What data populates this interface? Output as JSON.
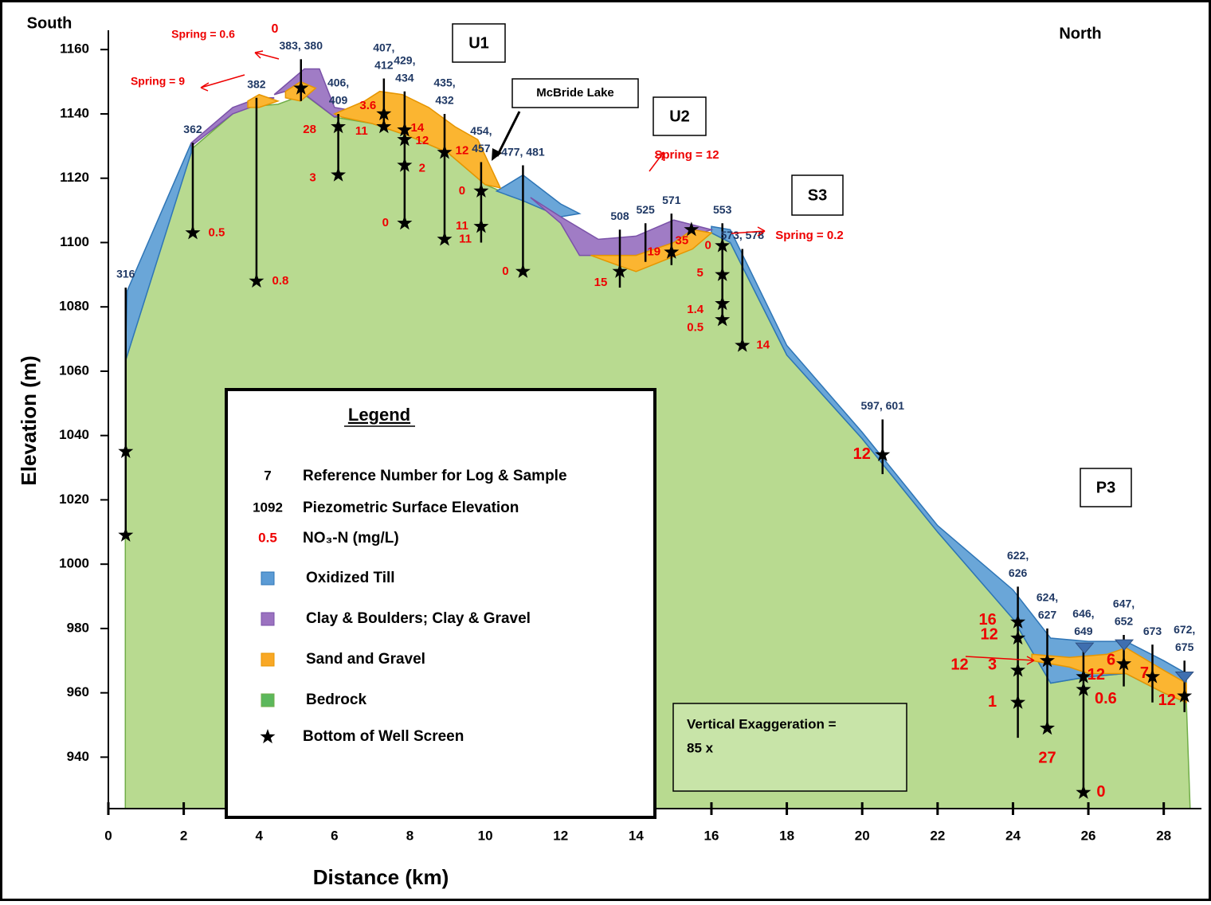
{
  "chart_data": {
    "type": "cross-section",
    "x_label": "Distance (km)",
    "y_label": "Elevation (m)",
    "xlim": [
      0,
      29
    ],
    "ylim": [
      924,
      1166
    ],
    "xticks": [
      0,
      2,
      4,
      6,
      8,
      10,
      12,
      14,
      16,
      18,
      20,
      22,
      24,
      26,
      28
    ],
    "yticks": [
      940,
      960,
      980,
      1000,
      1020,
      1040,
      1060,
      1080,
      1100,
      1120,
      1140,
      1160
    ],
    "corner_labels": [
      "South",
      "North"
    ],
    "section_labels": [
      "U1",
      "U2",
      "S3",
      "P3"
    ],
    "lake_label": "McBride Lake",
    "exaggeration_note": [
      "Vertical Exaggeration =",
      "85 x"
    ],
    "annotations": [
      "0",
      "Spring = 0.6",
      "Spring = 9",
      "Spring = 12",
      "Spring = 0.2"
    ],
    "layers": [
      {
        "name": "Oxidized Till",
        "color": "#6aa6d8",
        "polygons": [
          {
            "x": [
              0.45,
              0.5,
              2.2,
              2.2
            ],
            "y": [
              1063,
              1085,
              1131,
              1128
            ]
          },
          {
            "x": [
              10.3,
              11,
              12,
              12.5,
              12,
              11,
              10.3
            ],
            "y": [
              1116,
              1121,
              1112,
              1109,
              1108,
              1113,
              1116
            ]
          },
          {
            "x": [
              16,
              16.5,
              18,
              20,
              22,
              24,
              25,
              26,
              27,
              28,
              28.6,
              28.6,
              28,
              27,
              26,
              25,
              24,
              22,
              20,
              18,
              16.5,
              16
            ],
            "y": [
              1105,
              1104,
              1068,
              1041,
              1012,
              992,
              977,
              976,
              976,
              970,
              966,
              957,
              960,
              966,
              965,
              963,
              983,
              1010,
              1039,
              1065,
              1100,
              1103
            ]
          }
        ]
      },
      {
        "name": "Clay & Boulders; Clay & Gravel",
        "color": "#a07cc5",
        "polygons": [
          {
            "x": [
              2.2,
              3.3,
              4,
              4.4,
              4,
              3.3,
              2.2
            ],
            "y": [
              1131,
              1142,
              1145,
              1145,
              1143,
              1140,
              1130
            ]
          },
          {
            "x": [
              4.4,
              5.2,
              5.6,
              6,
              6.5,
              6,
              5,
              4.4
            ],
            "y": [
              1146,
              1154,
              1154,
              1142,
              1141,
              1139,
              1148,
              1146
            ]
          },
          {
            "x": [
              11.2,
              12,
              13,
              14,
              15,
              16,
              15.5,
              14,
              12.5,
              12,
              11.2
            ],
            "y": [
              1114,
              1108,
              1101,
              1102,
              1107,
              1104,
              1102,
              1096,
              1096,
              1106,
              1114
            ]
          }
        ]
      },
      {
        "name": "Sand and Gravel",
        "color": "#fbb531",
        "polygons": [
          {
            "x": [
              3.7,
              4,
              4.5,
              4,
              3.7
            ],
            "y": [
              1144,
              1146,
              1144,
              1142,
              1142
            ]
          },
          {
            "x": [
              4.7,
              5.1,
              5.5,
              5.1,
              4.7
            ],
            "y": [
              1147,
              1150,
              1148,
              1144,
              1145
            ]
          },
          {
            "x": [
              6,
              6.8,
              7.2,
              7.8,
              8.5,
              9.2,
              9.8,
              10.4,
              10,
              9,
              8,
              7,
              6.2
            ],
            "y": [
              1140,
              1144,
              1147,
              1146,
              1142,
              1136,
              1132,
              1117,
              1118,
              1128,
              1133,
              1137,
              1139
            ]
          },
          {
            "x": [
              12.8,
              14,
              15,
              15.5,
              16,
              15.5,
              14,
              13.5
            ],
            "y": [
              1096,
              1096,
              1100,
              1104,
              1103,
              1098,
              1091,
              1093
            ]
          },
          {
            "x": [
              24.5,
              25.5,
              26.5,
              27,
              28,
              28.6,
              28.6,
              28,
              27,
              26,
              25.5,
              24.5
            ],
            "y": [
              972,
              971,
              972,
              974,
              967,
              963,
              957,
              960,
              966,
              966,
              968,
              970
            ]
          }
        ]
      },
      {
        "name": "Bedrock",
        "color": "#b8da90",
        "polygons": [
          {
            "x": [
              0.45,
              0.45,
              2.2,
              3.5,
              4.5,
              5.2,
              6,
              7,
              8,
              9,
              10,
              10.4,
              11,
              12,
              13,
              14,
              15,
              16,
              16.5,
              18,
              20,
              22,
              24,
              25,
              26,
              27,
              28,
              28.6,
              28.7
            ],
            "y": [
              924,
              1063,
              1129,
              1142,
              1143,
              1146,
              1139,
              1137,
              1133,
              1128,
              1118,
              1116,
              1113,
              1108,
              1097,
              1096,
              1099,
              1103,
              1100,
              1065,
              1039,
              1010,
              983,
              963,
              965,
              966,
              960,
              957,
              924
            ]
          }
        ]
      }
    ],
    "wells": [
      {
        "label": [
          "316"
        ],
        "x": 0.46,
        "top": 1086,
        "bottom": 1009
      },
      {
        "label": [
          "362"
        ],
        "x": 2.24,
        "top": 1131,
        "bottom": 1103
      },
      {
        "label": [
          "382"
        ],
        "x": 3.93,
        "top": 1145,
        "bottom": 1088
      },
      {
        "label": [
          "383, 380"
        ],
        "x": 5.11,
        "top": 1157,
        "bottom": 1144
      },
      {
        "label": [
          "406,",
          "409"
        ],
        "x": 6.1,
        "top": 1140,
        "bottom": 1121
      },
      {
        "label": [
          "407,",
          "412"
        ],
        "x": 7.31,
        "top": 1151,
        "bottom": 1136
      },
      {
        "label": [
          "429,",
          "434"
        ],
        "x": 7.86,
        "top": 1147,
        "bottom": 1105
      },
      {
        "label": [
          "435,",
          "432"
        ],
        "x": 8.92,
        "top": 1140,
        "bottom": 1101
      },
      {
        "label": [
          "454,",
          "457"
        ],
        "x": 9.89,
        "top": 1125,
        "bottom": 1100
      },
      {
        "label": [
          "477, 481"
        ],
        "x": 11.0,
        "top": 1124,
        "bottom": 1091
      },
      {
        "label": [
          "508"
        ],
        "x": 13.57,
        "top": 1104,
        "bottom": 1086
      },
      {
        "label": [
          "525"
        ],
        "x": 14.25,
        "top": 1106,
        "bottom": 1094
      },
      {
        "label": [
          "571"
        ],
        "x": 14.94,
        "top": 1109,
        "bottom": 1093
      },
      {
        "label": [
          "553"
        ],
        "x": 16.29,
        "top": 1106,
        "bottom": 1075
      },
      {
        "label": [
          "573, 578"
        ],
        "x": 16.82,
        "top": 1098,
        "bottom": 1068
      },
      {
        "label": [
          "597, 601"
        ],
        "x": 20.54,
        "top": 1045,
        "bottom": 1028
      },
      {
        "label": [
          "622,",
          "626"
        ],
        "x": 24.13,
        "top": 993,
        "bottom": 946
      },
      {
        "label": [
          "624,",
          "627"
        ],
        "x": 24.91,
        "top": 980,
        "bottom": 949
      },
      {
        "label": [
          "646,",
          "649"
        ],
        "x": 25.87,
        "top": 975,
        "bottom": 929
      },
      {
        "label": [
          "647,",
          "652"
        ],
        "x": 26.94,
        "top": 978,
        "bottom": 962
      },
      {
        "label": [
          "673"
        ],
        "x": 27.7,
        "top": 975,
        "bottom": 957
      },
      {
        "label": [
          "672,",
          "675"
        ],
        "x": 28.55,
        "top": 970,
        "bottom": 954
      }
    ],
    "screens": [
      {
        "x": 0.46,
        "y": 1035,
        "no3": null
      },
      {
        "x": 0.46,
        "y": 1009,
        "no3": null
      },
      {
        "x": 2.24,
        "y": 1103,
        "no3": 0.5
      },
      {
        "x": 3.93,
        "y": 1088,
        "no3": 0.8
      },
      {
        "x": 5.11,
        "y": 1148,
        "no3": null
      },
      {
        "x": 6.1,
        "y": 1136,
        "no3": 28
      },
      {
        "x": 6.1,
        "y": 1121,
        "no3": 3
      },
      {
        "x": 7.31,
        "y": 1140,
        "no3": 3.6
      },
      {
        "x": 7.31,
        "y": 1136,
        "no3": 11
      },
      {
        "x": 7.86,
        "y": 1135,
        "no3": 14
      },
      {
        "x": 7.86,
        "y": 1132,
        "no3": 12
      },
      {
        "x": 7.86,
        "y": 1124,
        "no3": 2
      },
      {
        "x": 7.86,
        "y": 1106,
        "no3": 0
      },
      {
        "x": 8.92,
        "y": 1128,
        "no3": 12
      },
      {
        "x": 8.92,
        "y": 1101,
        "no3": 11
      },
      {
        "x": 9.89,
        "y": 1116,
        "no3": 0
      },
      {
        "x": 9.89,
        "y": 1105,
        "no3": 11
      },
      {
        "x": 11.0,
        "y": 1091,
        "no3": 0
      },
      {
        "x": 13.57,
        "y": 1091,
        "no3": 15
      },
      {
        "x": 14.94,
        "y": 1097,
        "no3": 19
      },
      {
        "x": 15.47,
        "y": 1104,
        "no3": 35
      },
      {
        "x": 16.29,
        "y": 1099,
        "no3": 0
      },
      {
        "x": 16.29,
        "y": 1090,
        "no3": 5
      },
      {
        "x": 16.29,
        "y": 1081,
        "no3": 1.4
      },
      {
        "x": 16.29,
        "y": 1076,
        "no3": 0.5
      },
      {
        "x": 16.82,
        "y": 1068,
        "no3": 14
      },
      {
        "x": 20.54,
        "y": 1034,
        "no3": 12
      },
      {
        "x": 24.13,
        "y": 982,
        "no3": 16
      },
      {
        "x": 24.13,
        "y": 977,
        "no3": 12
      },
      {
        "x": 24.13,
        "y": 967,
        "no3": 3
      },
      {
        "x": 24.13,
        "y": 957,
        "no3": 1
      },
      {
        "x": 24.91,
        "y": 970,
        "no3": 12
      },
      {
        "x": 24.91,
        "y": 949,
        "no3": 27
      },
      {
        "x": 25.87,
        "y": 965,
        "no3": 12
      },
      {
        "x": 25.87,
        "y": 961,
        "no3": 0.6
      },
      {
        "x": 25.87,
        "y": 929,
        "no3": 0
      },
      {
        "x": 26.94,
        "y": 969,
        "no3": 6
      },
      {
        "x": 27.7,
        "y": 965,
        "no3": 7
      },
      {
        "x": 28.55,
        "y": 959,
        "no3": 12
      }
    ],
    "water_levels": {
      "x": [
        25.9,
        26.95,
        28.55
      ],
      "y": [
        974,
        975,
        965
      ]
    },
    "legend": {
      "title": "Legend",
      "items": [
        {
          "symbol": "7",
          "label": "Reference Number for Log & Sample"
        },
        {
          "symbol": "1092",
          "label": "Piezometric Surface Elevation"
        },
        {
          "symbol": "0.5",
          "label": "NO₃-N (mg/L)"
        },
        {
          "label": "Bottom of Well Screen"
        }
      ]
    }
  }
}
